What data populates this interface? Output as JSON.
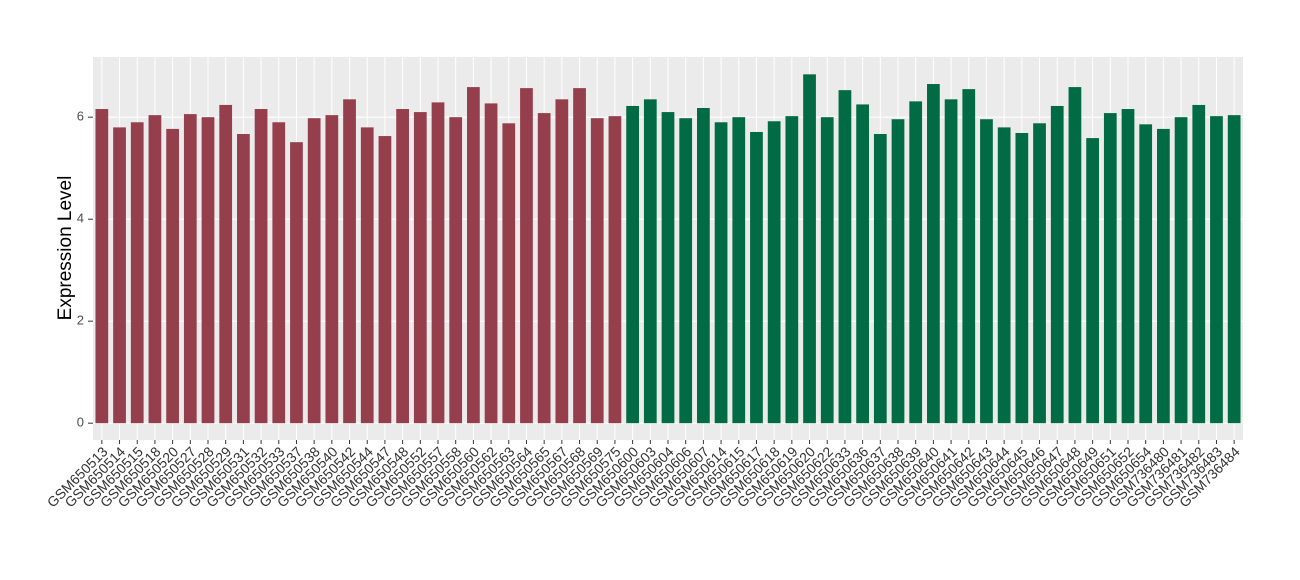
{
  "chart_data": {
    "type": "bar",
    "y_label": "Expression Level",
    "ylim": [
      -0.33,
      7.18
    ],
    "yticks": [
      0,
      2,
      4,
      6
    ],
    "grid": true,
    "series": [
      {
        "color": "#953f4c",
        "categories": [
          "GSM650513",
          "GSM650514",
          "GSM650515",
          "GSM650518",
          "GSM650520",
          "GSM650527",
          "GSM650528",
          "GSM650529",
          "GSM650531",
          "GSM650532",
          "GSM650533",
          "GSM650537",
          "GSM650538",
          "GSM650540",
          "GSM650542",
          "GSM650544",
          "GSM650547",
          "GSM650548",
          "GSM650552",
          "GSM650557",
          "GSM650558",
          "GSM650560",
          "GSM650562",
          "GSM650563",
          "GSM650564",
          "GSM650565",
          "GSM650567",
          "GSM650568",
          "GSM650569",
          "GSM650575"
        ],
        "values": [
          6.16,
          5.8,
          5.9,
          6.04,
          5.77,
          6.06,
          6.0,
          6.24,
          5.67,
          6.16,
          5.9,
          5.51,
          5.98,
          6.04,
          6.35,
          5.8,
          5.63,
          6.16,
          6.1,
          6.29,
          6.0,
          6.59,
          6.27,
          5.88,
          6.57,
          6.08,
          6.35,
          6.57,
          5.98,
          6.02
        ]
      },
      {
        "color": "#006b45",
        "categories": [
          "GSM650600",
          "GSM650603",
          "GSM650604",
          "GSM650606",
          "GSM650607",
          "GSM650614",
          "GSM650615",
          "GSM650617",
          "GSM650618",
          "GSM650619",
          "GSM650620",
          "GSM650622",
          "GSM650633",
          "GSM650636",
          "GSM650637",
          "GSM650638",
          "GSM650639",
          "GSM650640",
          "GSM650641",
          "GSM650642",
          "GSM650643",
          "GSM650644",
          "GSM650645",
          "GSM650646",
          "GSM650647",
          "GSM650648",
          "GSM650649",
          "GSM650651",
          "GSM650652",
          "GSM650654",
          "GSM736480",
          "GSM736481",
          "GSM736482",
          "GSM736483",
          "GSM736484"
        ],
        "values": [
          6.22,
          6.35,
          6.1,
          5.98,
          6.18,
          5.9,
          6.0,
          5.71,
          5.92,
          6.02,
          6.84,
          6.0,
          6.53,
          6.25,
          5.67,
          5.96,
          6.31,
          6.65,
          6.35,
          6.55,
          5.96,
          5.8,
          5.69,
          5.88,
          6.22,
          6.59,
          5.59,
          6.08,
          6.16,
          5.86,
          5.77,
          6.0,
          6.24,
          6.02,
          6.04
        ]
      }
    ]
  }
}
